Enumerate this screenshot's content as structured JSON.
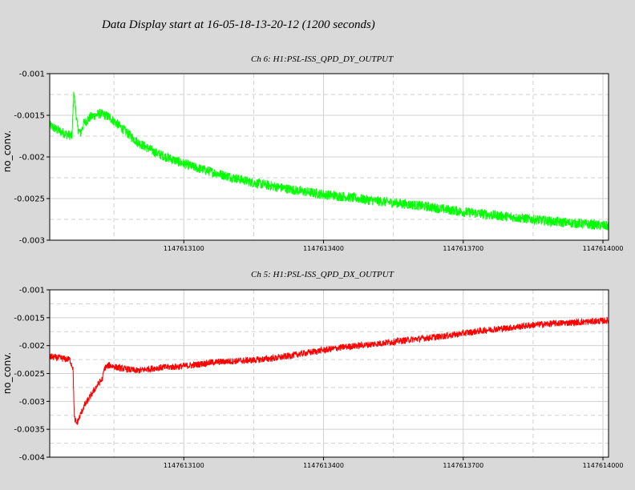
{
  "header": {
    "title": "Data Display start at 16-05-18-13-20-12 (1200 seconds)"
  },
  "chart_data": [
    {
      "type": "line",
      "title": "Ch 6: H1:PSL-ISS_QPD_DY_OUTPUT",
      "ylabel": "no_conv.",
      "xlabel": "",
      "xlim": [
        1147612812,
        1147614012
      ],
      "ylim": [
        -0.003,
        -0.001
      ],
      "xticks": [
        1147613100,
        1147613400,
        1147613700,
        1147614000
      ],
      "xtick_labels": [
        "1147613100",
        "1147613400",
        "1147613700",
        "1147614000"
      ],
      "yticks": [
        -0.003,
        -0.0025,
        -0.002,
        -0.0015,
        -0.001
      ],
      "ytick_labels": [
        "-0.003",
        "-0.0025",
        "-0.002",
        "-0.0015",
        "-0.001"
      ],
      "grid": true,
      "color": "#00ff00",
      "noise": 6e-05,
      "series": [
        {
          "x": [
            1147612812,
            1147612830,
            1147612845,
            1147612860,
            1147612864,
            1147612867,
            1147612872,
            1147612878,
            1147612885,
            1147612900,
            1147612920,
            1147612940,
            1147612960,
            1147612980,
            1147613000,
            1147613040,
            1147613080,
            1147613120,
            1147613160,
            1147613200,
            1147613250,
            1147613300,
            1147613350,
            1147613400,
            1147613450,
            1147613500,
            1147613550,
            1147613600,
            1147613650,
            1147613700,
            1147613750,
            1147613800,
            1147613850,
            1147613900,
            1147613950,
            1147614012
          ],
          "y": [
            -0.00162,
            -0.00168,
            -0.00172,
            -0.00175,
            -0.0012,
            -0.0014,
            -0.00165,
            -0.00172,
            -0.0016,
            -0.00152,
            -0.00148,
            -0.00152,
            -0.00162,
            -0.00172,
            -0.00182,
            -0.00195,
            -0.00204,
            -0.00212,
            -0.00218,
            -0.00224,
            -0.00231,
            -0.00236,
            -0.00241,
            -0.00245,
            -0.00248,
            -0.00252,
            -0.00255,
            -0.00258,
            -0.00262,
            -0.00266,
            -0.00269,
            -0.00272,
            -0.00275,
            -0.00278,
            -0.0028,
            -0.00283
          ]
        }
      ]
    },
    {
      "type": "line",
      "title": "Ch 5: H1:PSL-ISS_QPD_DX_OUTPUT",
      "ylabel": "no_conv.",
      "xlabel": "",
      "xlim": [
        1147612812,
        1147614012
      ],
      "ylim": [
        -0.004,
        -0.001
      ],
      "xticks": [
        1147613100,
        1147613400,
        1147613700,
        1147614000
      ],
      "xtick_labels": [
        "1147613100",
        "1147613400",
        "1147613700",
        "1147614000"
      ],
      "yticks": [
        -0.004,
        -0.0035,
        -0.003,
        -0.0025,
        -0.002,
        -0.0015,
        -0.001
      ],
      "ytick_labels": [
        "-0.004",
        "-0.0035",
        "-0.003",
        "-0.0025",
        "-0.002",
        "-0.0015",
        "-0.001"
      ],
      "grid": true,
      "color": "#ff0000",
      "noise": 6e-05,
      "series": [
        {
          "x": [
            1147612812,
            1147612830,
            1147612855,
            1147612862,
            1147612865,
            1147612870,
            1147612875,
            1147612885,
            1147612900,
            1147612915,
            1147612925,
            1147612930,
            1147612940,
            1147612960,
            1147613000,
            1147613040,
            1147613080,
            1147613120,
            1147613160,
            1147613200,
            1147613250,
            1147613300,
            1147613350,
            1147613400,
            1147613450,
            1147613500,
            1147613550,
            1147613600,
            1147613650,
            1147613700,
            1147613750,
            1147613800,
            1147613850,
            1147613900,
            1147613950,
            1147614012
          ],
          "y": [
            -0.0022,
            -0.00222,
            -0.00225,
            -0.0024,
            -0.0033,
            -0.0034,
            -0.0033,
            -0.0031,
            -0.0029,
            -0.0027,
            -0.0026,
            -0.0024,
            -0.00235,
            -0.0024,
            -0.00245,
            -0.0024,
            -0.00238,
            -0.00235,
            -0.0023,
            -0.00228,
            -0.00226,
            -0.00222,
            -0.00215,
            -0.00208,
            -0.00202,
            -0.00198,
            -0.00193,
            -0.00188,
            -0.00184,
            -0.00178,
            -0.00172,
            -0.00168,
            -0.00163,
            -0.0016,
            -0.00158,
            -0.00155
          ]
        }
      ]
    }
  ]
}
